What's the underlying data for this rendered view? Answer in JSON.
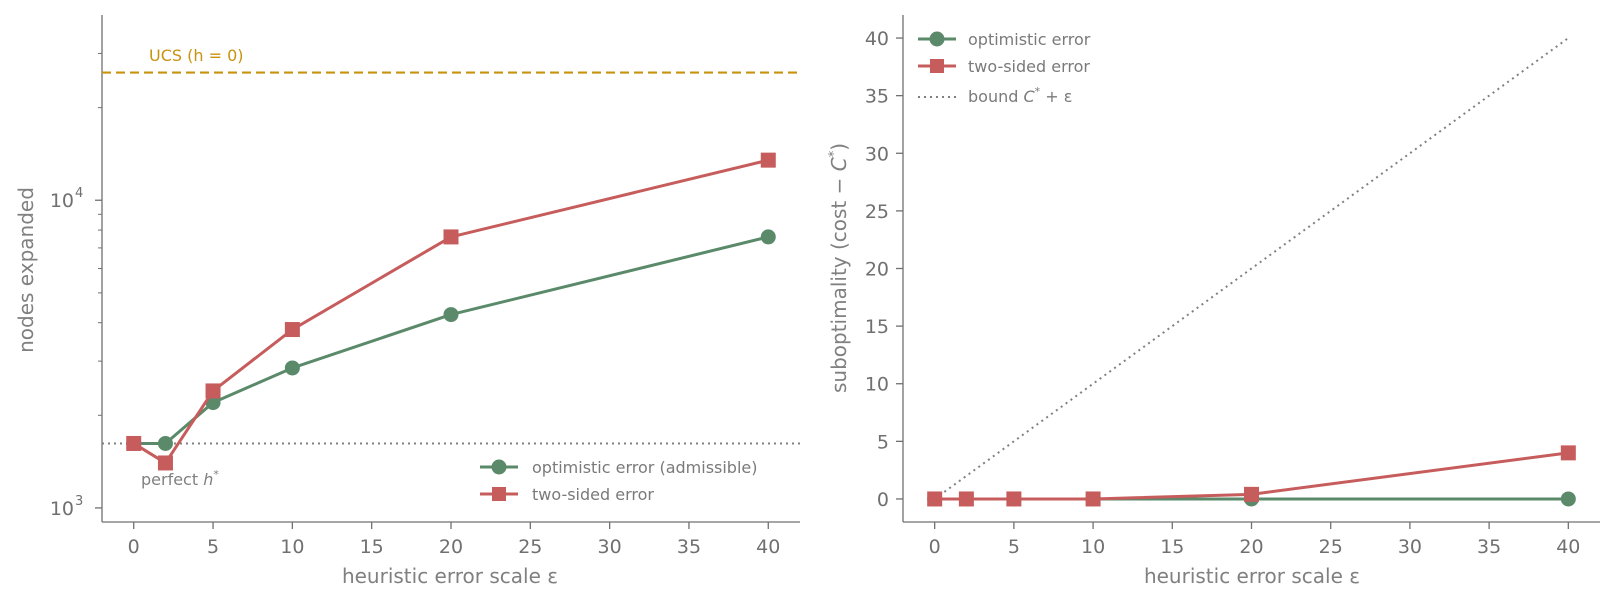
{
  "colors": {
    "optimistic": "#5a8a6a",
    "two_sided": "#c75c5c",
    "ucs": "#c8930e",
    "reference": "#808080",
    "axis": "#707070"
  },
  "chart_data": [
    {
      "type": "line",
      "xlabel": "heuristic error scale ε",
      "ylabel": "nodes expanded",
      "yscale": "log",
      "xlim": [
        -2,
        42
      ],
      "ylim": [
        900,
        40000
      ],
      "xticks": [
        0,
        5,
        10,
        15,
        20,
        25,
        30,
        35,
        40
      ],
      "xtick_labels": [
        "0",
        "5",
        "10",
        "15",
        "20",
        "25",
        "30",
        "35",
        "40"
      ],
      "yticks": [
        1000,
        10000
      ],
      "ytick_labels": [
        {
          "base": "10",
          "exp": "3"
        },
        {
          "base": "10",
          "exp": "4"
        }
      ],
      "x": [
        0,
        2,
        5,
        10,
        20,
        40
      ],
      "series": [
        {
          "name": "optimistic error (admissible)",
          "marker": "circle",
          "color_key": "optimistic",
          "values": [
            1620,
            1620,
            2200,
            2850,
            4250,
            7600
          ]
        },
        {
          "name": "two-sided error",
          "marker": "square",
          "color_key": "two_sided",
          "values": [
            1620,
            1400,
            2400,
            3800,
            7600,
            13500
          ]
        }
      ],
      "reference_lines": [
        {
          "name": "UCS (h = 0)",
          "y": 26000,
          "style": "dashed",
          "color_key": "ucs"
        },
        {
          "name": "perfect h*",
          "y": 1620,
          "style": "dotted",
          "color_key": "reference"
        }
      ],
      "annotations": {
        "ucs": "UCS (h = 0)",
        "perfect": {
          "text": "perfect ",
          "symbol": "h",
          "sup": "*"
        }
      },
      "grid": false,
      "legend": "lower-right"
    },
    {
      "type": "line",
      "xlabel": "heuristic error scale ε",
      "ylabel": {
        "text": "suboptimality (cost − ",
        "symbol": "C",
        "sup": "*",
        "close": ")"
      },
      "xlim": [
        -2,
        42
      ],
      "ylim": [
        -2,
        42
      ],
      "xticks": [
        0,
        5,
        10,
        15,
        20,
        25,
        30,
        35,
        40
      ],
      "xtick_labels": [
        "0",
        "5",
        "10",
        "15",
        "20",
        "25",
        "30",
        "35",
        "40"
      ],
      "yticks": [
        0,
        5,
        10,
        15,
        20,
        25,
        30,
        35,
        40
      ],
      "ytick_labels": [
        "0",
        "5",
        "10",
        "15",
        "20",
        "25",
        "30",
        "35",
        "40"
      ],
      "x": [
        0,
        2,
        5,
        10,
        20,
        40
      ],
      "series": [
        {
          "name": "optimistic error",
          "marker": "circle",
          "color_key": "optimistic",
          "values": [
            0,
            0,
            0,
            0,
            0,
            0
          ]
        },
        {
          "name": "two-sided error",
          "marker": "square",
          "color_key": "two_sided",
          "values": [
            0,
            0,
            0,
            0,
            0.4,
            4
          ]
        }
      ],
      "bound_line": {
        "name": "bound",
        "x": [
          0,
          40
        ],
        "values": [
          0,
          40
        ],
        "style": "dotted",
        "color_key": "reference"
      },
      "legend_labels": {
        "optimistic": "optimistic error",
        "two_sided": "two-sided error",
        "bound": {
          "text": "bound ",
          "symbol": "C",
          "sup": "*",
          "rest": " + ε"
        }
      },
      "grid": false,
      "legend": "top-left"
    }
  ]
}
